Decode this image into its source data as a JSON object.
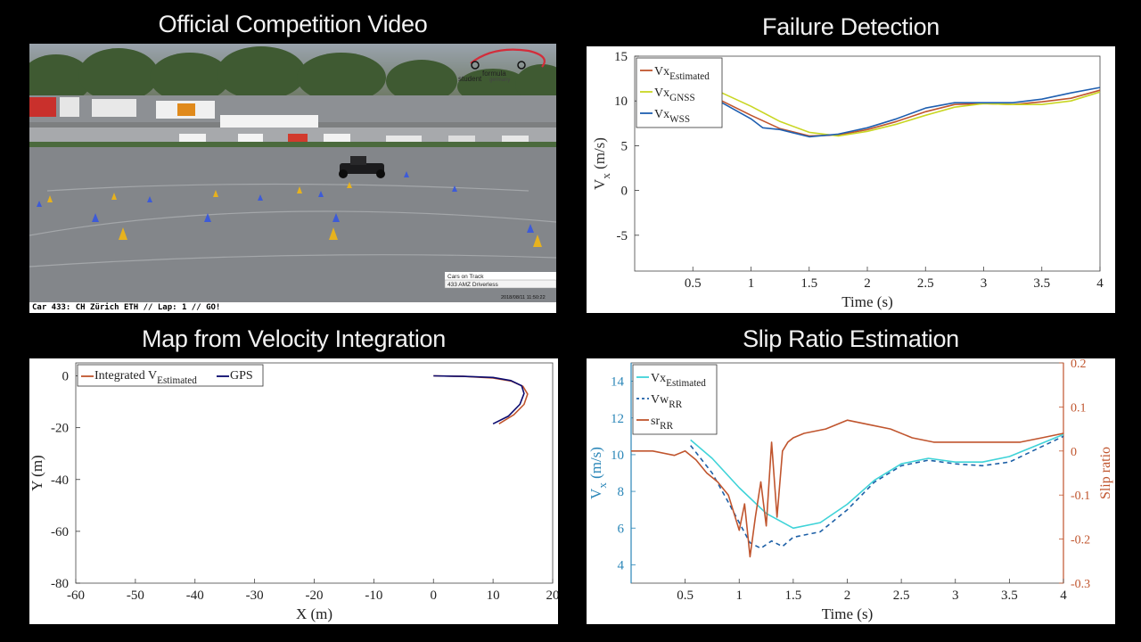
{
  "titles": {
    "video": "Official Competition Video",
    "failure": "Failure Detection",
    "map": "Map from Velocity Integration",
    "slip": "Slip Ratio Estimation"
  },
  "video": {
    "caption": "Car 433: CH Zürich ETH // Lap: 1 // GO!",
    "overlay_line1": "Cars on Track",
    "overlay_line2": "433 AMZ Driverless",
    "timestamp": "2018/08/11 11:50:22",
    "logo_text_1": "formula",
    "logo_text_2": "student",
    "logo_text_3": "germany"
  },
  "chart_data": [
    {
      "id": "failure",
      "type": "line",
      "xlabel": "Time (s)",
      "ylabel": "V",
      "ylabel_sub": "x",
      "ylabel_unit": "(m/s)",
      "xlim": [
        0.0,
        4.0
      ],
      "ylim": [
        -9,
        15
      ],
      "xticks": [
        0.5,
        1,
        1.5,
        2,
        2.5,
        3,
        3.5,
        4
      ],
      "yticks": [
        -5,
        0,
        5,
        10,
        15
      ],
      "legend": "top-left",
      "series": [
        {
          "name": "Vx",
          "sub": "Estimated",
          "color": "#c0552e",
          "x": [
            0.75,
            1.0,
            1.25,
            1.5,
            1.75,
            2.0,
            2.25,
            2.5,
            2.75,
            3.0,
            3.25,
            3.5,
            3.75,
            4.0
          ],
          "y": [
            10.0,
            8.4,
            6.9,
            6.1,
            6.2,
            6.8,
            7.7,
            8.8,
            9.6,
            9.7,
            9.6,
            9.9,
            10.3,
            11.2
          ]
        },
        {
          "name": "Vx",
          "sub": "GNSS",
          "color": "#c9d623",
          "x": [
            0.75,
            1.0,
            1.25,
            1.5,
            1.75,
            2.0,
            2.25,
            2.5,
            2.75,
            3.0,
            3.25,
            3.5,
            3.75,
            4.0
          ],
          "y": [
            10.9,
            9.4,
            7.7,
            6.5,
            6.1,
            6.6,
            7.4,
            8.4,
            9.3,
            9.7,
            9.6,
            9.6,
            10.0,
            11.0
          ]
        },
        {
          "name": "Vx",
          "sub": "WSS",
          "color": "#1f5fb0",
          "x": [
            0.75,
            1.0,
            1.1,
            1.25,
            1.5,
            1.75,
            2.0,
            2.25,
            2.5,
            2.75,
            3.0,
            3.25,
            3.5,
            3.75,
            4.0
          ],
          "y": [
            9.8,
            8.0,
            7.0,
            6.8,
            6.0,
            6.3,
            7.0,
            8.0,
            9.2,
            9.8,
            9.8,
            9.8,
            10.2,
            10.9,
            11.5
          ]
        }
      ]
    },
    {
      "id": "map",
      "type": "line",
      "xlabel": "X (m)",
      "ylabel": "Y (m)",
      "xlim": [
        -60,
        20
      ],
      "ylim": [
        -80,
        5
      ],
      "xticks": [
        -60,
        -50,
        -40,
        -30,
        -20,
        -10,
        0,
        10,
        20
      ],
      "yticks": [
        -80,
        -60,
        -40,
        -20,
        0
      ],
      "legend": "top-left",
      "series": [
        {
          "name": "Integrated V",
          "sub": "Estimated",
          "color": "#c0552e",
          "x": [
            0,
            5,
            10,
            13,
            15,
            15.8,
            15.2,
            13.5,
            11.0
          ],
          "y": [
            0,
            -0.2,
            -0.8,
            -2.0,
            -4.0,
            -7.0,
            -11.0,
            -15.0,
            -18.5
          ]
        },
        {
          "name": "GPS",
          "sub": "",
          "color": "#0a0a6e",
          "x": [
            0,
            5,
            10,
            13,
            14.8,
            15.2,
            14.5,
            12.6,
            10.0
          ],
          "y": [
            0,
            -0.2,
            -0.6,
            -1.8,
            -3.8,
            -6.8,
            -11.0,
            -15.5,
            -18.5
          ]
        }
      ]
    },
    {
      "id": "slip",
      "type": "line",
      "xlabel": "Time (s)",
      "ylabel": "V",
      "ylabel_sub": "x",
      "ylabel_unit": "(m/s)",
      "ylabel_right": "Slip ratio",
      "xlim": [
        0.0,
        4.0
      ],
      "ylim": [
        3,
        15
      ],
      "ylim_right": [
        -0.3,
        0.2
      ],
      "xticks": [
        0.5,
        1,
        1.5,
        2,
        2.5,
        3,
        3.5,
        4
      ],
      "yticks": [
        4,
        6,
        8,
        10,
        12,
        14
      ],
      "yticks_right": [
        -0.3,
        -0.2,
        -0.1,
        0,
        0.1,
        0.2
      ],
      "legend": "top-left",
      "series": [
        {
          "name": "Vx",
          "sub": "Estimated",
          "color": "#3fd3d8",
          "dash": "",
          "axis": "left",
          "x": [
            0.55,
            0.75,
            1.0,
            1.25,
            1.5,
            1.75,
            2.0,
            2.25,
            2.5,
            2.75,
            3.0,
            3.25,
            3.5,
            3.75,
            4.0
          ],
          "y": [
            10.8,
            9.8,
            8.2,
            6.8,
            6.0,
            6.3,
            7.3,
            8.6,
            9.5,
            9.8,
            9.6,
            9.6,
            9.9,
            10.5,
            11.1
          ]
        },
        {
          "name": "Vw",
          "sub": "RR",
          "color": "#1c5fa6",
          "dash": "5,4",
          "axis": "left",
          "x": [
            0.55,
            0.75,
            0.9,
            1.0,
            1.1,
            1.2,
            1.3,
            1.4,
            1.5,
            1.75,
            2.0,
            2.25,
            2.5,
            2.75,
            3.0,
            3.25,
            3.5,
            3.75,
            4.0
          ],
          "y": [
            10.5,
            9.0,
            7.4,
            6.3,
            5.2,
            4.9,
            5.3,
            5.0,
            5.5,
            5.8,
            7.0,
            8.5,
            9.4,
            9.7,
            9.5,
            9.4,
            9.6,
            10.3,
            11.0
          ]
        },
        {
          "name": "sr",
          "sub": "RR",
          "color": "#c0552e",
          "dash": "",
          "axis": "right",
          "x": [
            0.0,
            0.2,
            0.4,
            0.5,
            0.6,
            0.7,
            0.8,
            0.9,
            1.0,
            1.05,
            1.1,
            1.15,
            1.2,
            1.25,
            1.3,
            1.35,
            1.4,
            1.45,
            1.5,
            1.6,
            1.8,
            2.0,
            2.2,
            2.4,
            2.6,
            2.8,
            3.0,
            3.2,
            3.4,
            3.6,
            3.8,
            4.0
          ],
          "y": [
            0.0,
            0.0,
            -0.01,
            0.0,
            -0.02,
            -0.05,
            -0.07,
            -0.1,
            -0.18,
            -0.12,
            -0.24,
            -0.15,
            -0.07,
            -0.17,
            0.02,
            -0.15,
            0.0,
            0.02,
            0.03,
            0.04,
            0.05,
            0.07,
            0.06,
            0.05,
            0.03,
            0.02,
            0.02,
            0.02,
            0.02,
            0.02,
            0.03,
            0.04
          ]
        }
      ]
    }
  ]
}
